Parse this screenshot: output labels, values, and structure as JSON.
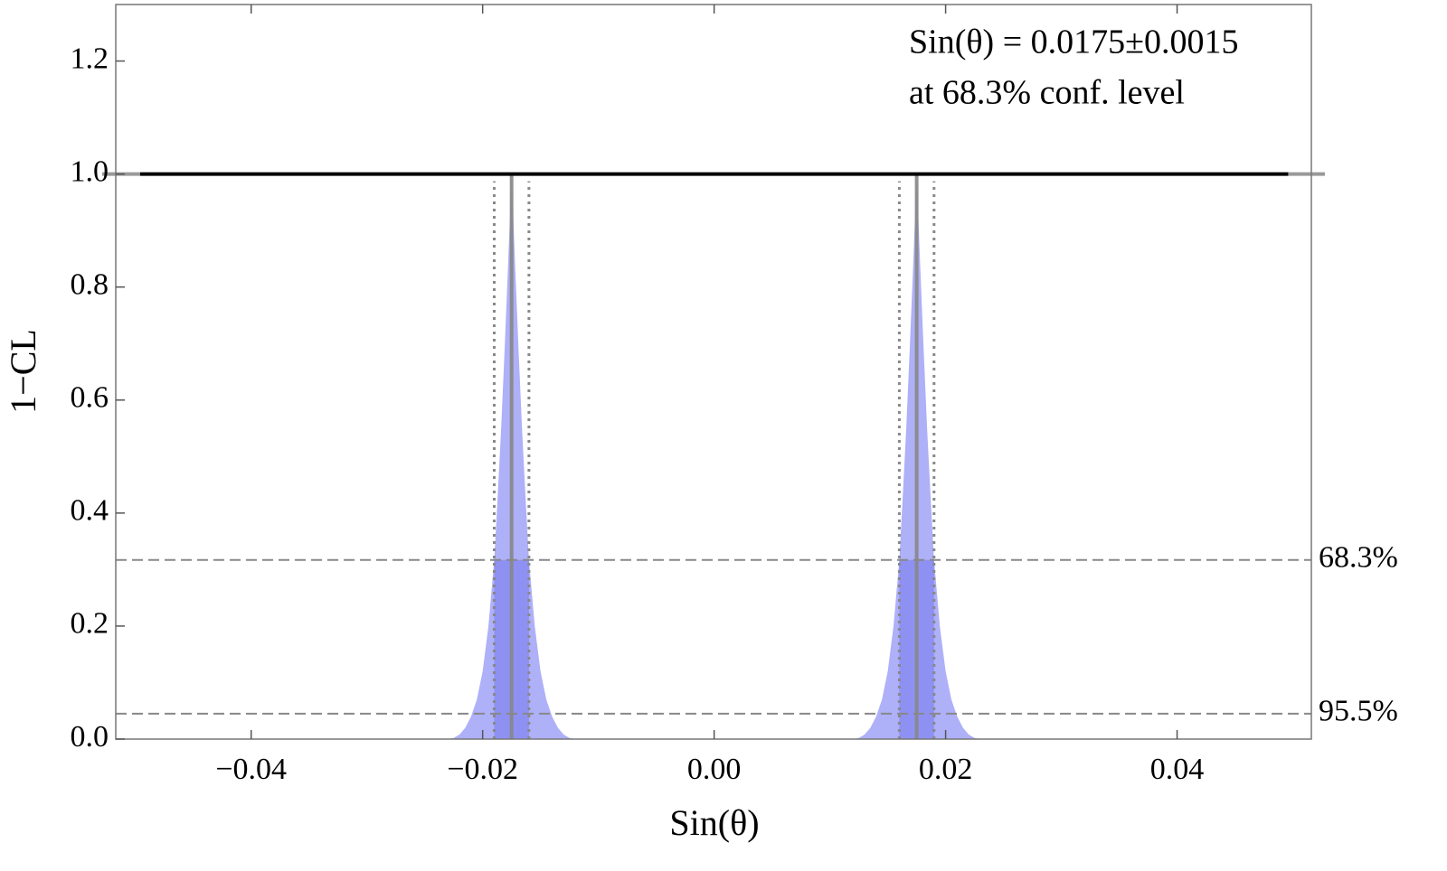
{
  "chart_data": {
    "type": "confidence",
    "xlabel": "Sin(θ)",
    "ylabel": "1−CL",
    "annotation": [
      "Sin(θ) = 0.0175±0.0015",
      "at 68.3% conf. level"
    ],
    "xlim": [
      -0.0517,
      0.0516
    ],
    "ylim": [
      0,
      1.3
    ],
    "xticks": [
      {
        "value": -0.04,
        "label": "−0.04"
      },
      {
        "value": -0.02,
        "label": "−0.02"
      },
      {
        "value": 0,
        "label": "0.00"
      },
      0.02,
      0.04
    ],
    "yticks": [
      {
        "value": 0,
        "label": "0.0"
      },
      0.2,
      0.4,
      0.6,
      0.8,
      {
        "value": 1,
        "label": "1.0"
      },
      1.2
    ],
    "line": {
      "x": [
        -0.0496,
        0.0496
      ],
      "values": [
        1,
        1
      ],
      "color": "#000000"
    },
    "peaks": [
      {
        "x": [
          -0.023,
          -0.0225,
          -0.022,
          -0.0215,
          -0.021,
          -0.0205,
          -0.02,
          -0.0195,
          -0.019,
          -0.0187,
          -0.0184,
          -0.0181,
          -0.0178,
          -0.0175,
          -0.0172,
          -0.0169,
          -0.0166,
          -0.0163,
          -0.016,
          -0.0155,
          -0.015,
          -0.0145,
          -0.014,
          -0.0135,
          -0.013,
          -0.0125,
          -0.012
        ],
        "values": [
          0,
          0.002,
          0.008,
          0.02,
          0.04,
          0.07,
          0.12,
          0.2,
          0.317,
          0.43,
          0.55,
          0.69,
          0.84,
          1,
          0.84,
          0.69,
          0.55,
          0.43,
          0.317,
          0.2,
          0.12,
          0.07,
          0.04,
          0.02,
          0.008,
          0.002,
          0
        ],
        "center": -0.0175,
        "interval": [
          -0.019,
          -0.016
        ]
      },
      {
        "x": [
          0.012,
          0.0125,
          0.013,
          0.0135,
          0.014,
          0.0145,
          0.015,
          0.0155,
          0.016,
          0.0163,
          0.0166,
          0.0169,
          0.0172,
          0.0175,
          0.0178,
          0.0181,
          0.0184,
          0.0187,
          0.019,
          0.0195,
          0.02,
          0.0205,
          0.021,
          0.0215,
          0.022,
          0.0225,
          0.023
        ],
        "values": [
          0,
          0.002,
          0.008,
          0.02,
          0.04,
          0.07,
          0.12,
          0.2,
          0.317,
          0.43,
          0.55,
          0.69,
          0.84,
          1,
          0.84,
          0.69,
          0.55,
          0.43,
          0.317,
          0.2,
          0.12,
          0.07,
          0.04,
          0.02,
          0.008,
          0.002,
          0
        ],
        "center": 0.0175,
        "interval": [
          0.016,
          0.019
        ]
      }
    ],
    "fill_color": "#aeb0f8",
    "band_color": "#8e91f2",
    "levels": [
      {
        "value": 0.317,
        "label": "68.3%"
      },
      {
        "value": 0.045,
        "label": "95.5%"
      }
    ]
  }
}
